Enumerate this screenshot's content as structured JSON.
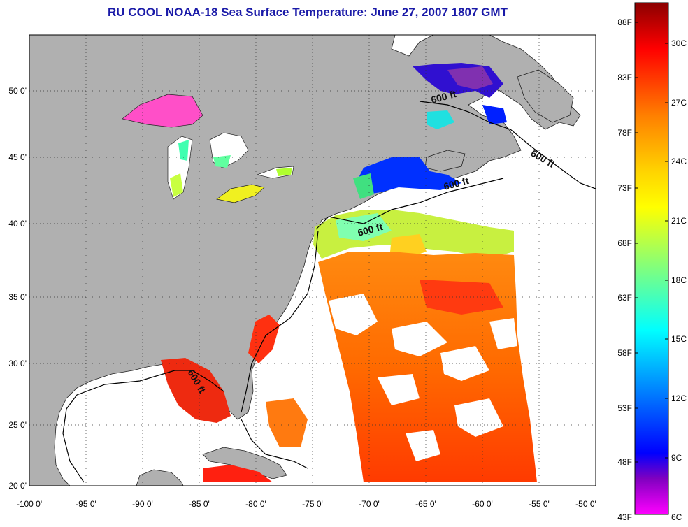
{
  "title": "RU COOL  NOAA-18  Sea Surface Temperature:  June 27, 2007 1807 GMT",
  "map": {
    "lon_range": [
      -100,
      -50
    ],
    "lat_range": [
      20,
      52.5
    ],
    "lon_ticks": [
      "-100 0'",
      "-95 0'",
      "-90 0'",
      "-85 0'",
      "-80 0'",
      "-75 0'",
      "-70 0'",
      "-65 0'",
      "-60 0'",
      "-55 0'",
      "-50 0'"
    ],
    "lat_ticks": [
      "50 0'",
      "45 0'",
      "40 0'",
      "35 0'",
      "30 0'",
      "25 0'",
      "20 0'"
    ],
    "grid": "dotted",
    "land_color": "#b0b0b0",
    "no_data_color": "#ffffff",
    "contour_label": "600 ft",
    "contour_labels": [
      "600 ft",
      "600 ft",
      "600 ft",
      "600 ft",
      "600 ft"
    ]
  },
  "colorbar": {
    "fahrenheit_labels": [
      "88F",
      "83F",
      "78F",
      "73F",
      "68F",
      "63F",
      "58F",
      "53F",
      "48F",
      "43F"
    ],
    "celsius_labels": [
      "30C",
      "27C",
      "24C",
      "21C",
      "18C",
      "15C",
      "12C",
      "9C",
      "6C"
    ],
    "colors": [
      "#8b0000",
      "#ff0000",
      "#ff7f00",
      "#ffd400",
      "#ffff00",
      "#7fff7f",
      "#00ffff",
      "#0080ff",
      "#0000ff",
      "#8000c0",
      "#ff00ff"
    ]
  }
}
